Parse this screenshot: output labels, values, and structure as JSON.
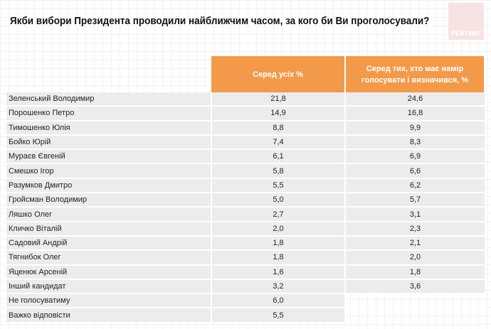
{
  "title": "Якби вибори Президента проводили найближчим часом, за кого би Ви проголосували?",
  "logo_text": "РЕЙТИНГ",
  "colors": {
    "header": "#f39a4a",
    "row": "#ececec"
  },
  "chart_data": {
    "type": "table",
    "columns": [
      "",
      "Серед усіх %",
      "Серед тих, хто має намір голосувати і визначився, %"
    ],
    "rows": [
      {
        "name": "Зеленський Володимир",
        "all": "21,8",
        "decided": "24,6"
      },
      {
        "name": "Порошенко Петро",
        "all": "14,9",
        "decided": "16,8"
      },
      {
        "name": "Тимошенко Юлія",
        "all": "8,8",
        "decided": "9,9"
      },
      {
        "name": "Бойко Юрій",
        "all": "7,4",
        "decided": "8,3"
      },
      {
        "name": "Мураєв Євгеній",
        "all": "6,1",
        "decided": "6,9"
      },
      {
        "name": "Смешко Ігор",
        "all": "5,8",
        "decided": "6,6"
      },
      {
        "name": "Разумков Дмитро",
        "all": "5,5",
        "decided": "6,2"
      },
      {
        "name": "Гройсман Володимир",
        "all": "5,0",
        "decided": "5,7"
      },
      {
        "name": "Ляшко Олег",
        "all": "2,7",
        "decided": "3,1"
      },
      {
        "name": "Кличко Віталій",
        "all": "2,0",
        "decided": "2,3"
      },
      {
        "name": "Садовий Андрій",
        "all": "1,8",
        "decided": "2,1"
      },
      {
        "name": "Тягнибок Олег",
        "all": "1,8",
        "decided": "2,0"
      },
      {
        "name": "Яценюк Арсеній",
        "all": "1,6",
        "decided": "1,8"
      },
      {
        "name": "Інший кандидат",
        "all": "3,2",
        "decided": "3,6"
      },
      {
        "name": "Не голосуватиму",
        "all": "6,0",
        "decided": null
      },
      {
        "name": "Важко відповісти",
        "all": "5,5",
        "decided": null
      }
    ]
  }
}
